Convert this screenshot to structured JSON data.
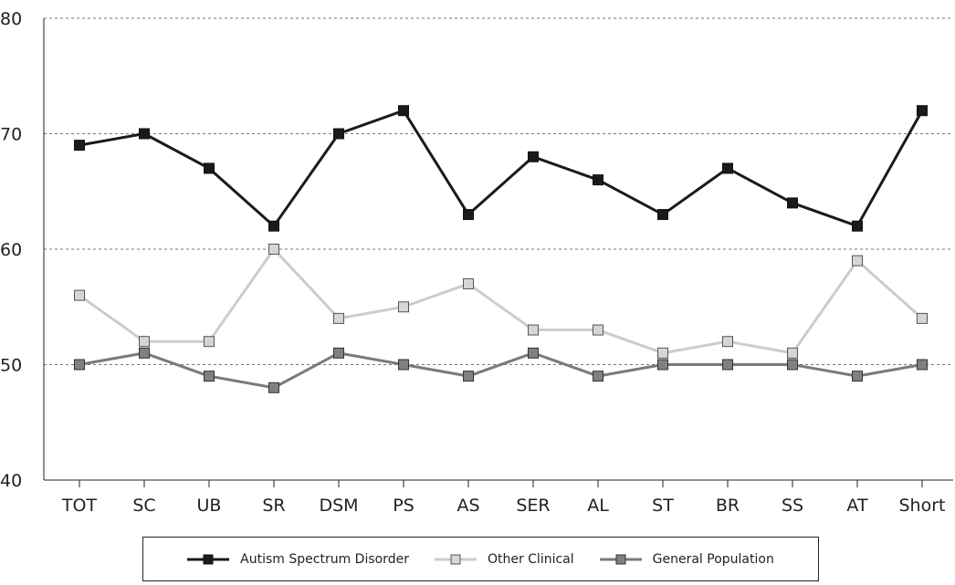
{
  "chart_data": {
    "type": "line",
    "categories": [
      "TOT",
      "SC",
      "UB",
      "SR",
      "DSM",
      "PS",
      "AS",
      "SER",
      "AL",
      "ST",
      "BR",
      "SS",
      "AT",
      "Short"
    ],
    "ylim": [
      40,
      80
    ],
    "yticks": [
      40,
      50,
      60,
      70,
      80
    ],
    "grid": true,
    "legend_position": "bottom",
    "series": [
      {
        "name": "Autism Spectrum Disorder",
        "color": "#1a1a1a",
        "marker_color": "#1a1a1a",
        "values": [
          69,
          70,
          67,
          62,
          70,
          72,
          63,
          68,
          66,
          63,
          67,
          64,
          62,
          72
        ]
      },
      {
        "name": "Other Clinical",
        "color": "#cccccc",
        "marker_color": "#d6d6d6",
        "values": [
          56,
          52,
          52,
          60,
          54,
          55,
          57,
          53,
          53,
          51,
          52,
          51,
          59,
          54
        ]
      },
      {
        "name": "General Population",
        "color": "#7a7a7a",
        "marker_color": "#808080",
        "values": [
          50,
          51,
          49,
          48,
          51,
          50,
          49,
          51,
          49,
          50,
          50,
          50,
          49,
          50
        ]
      }
    ]
  }
}
